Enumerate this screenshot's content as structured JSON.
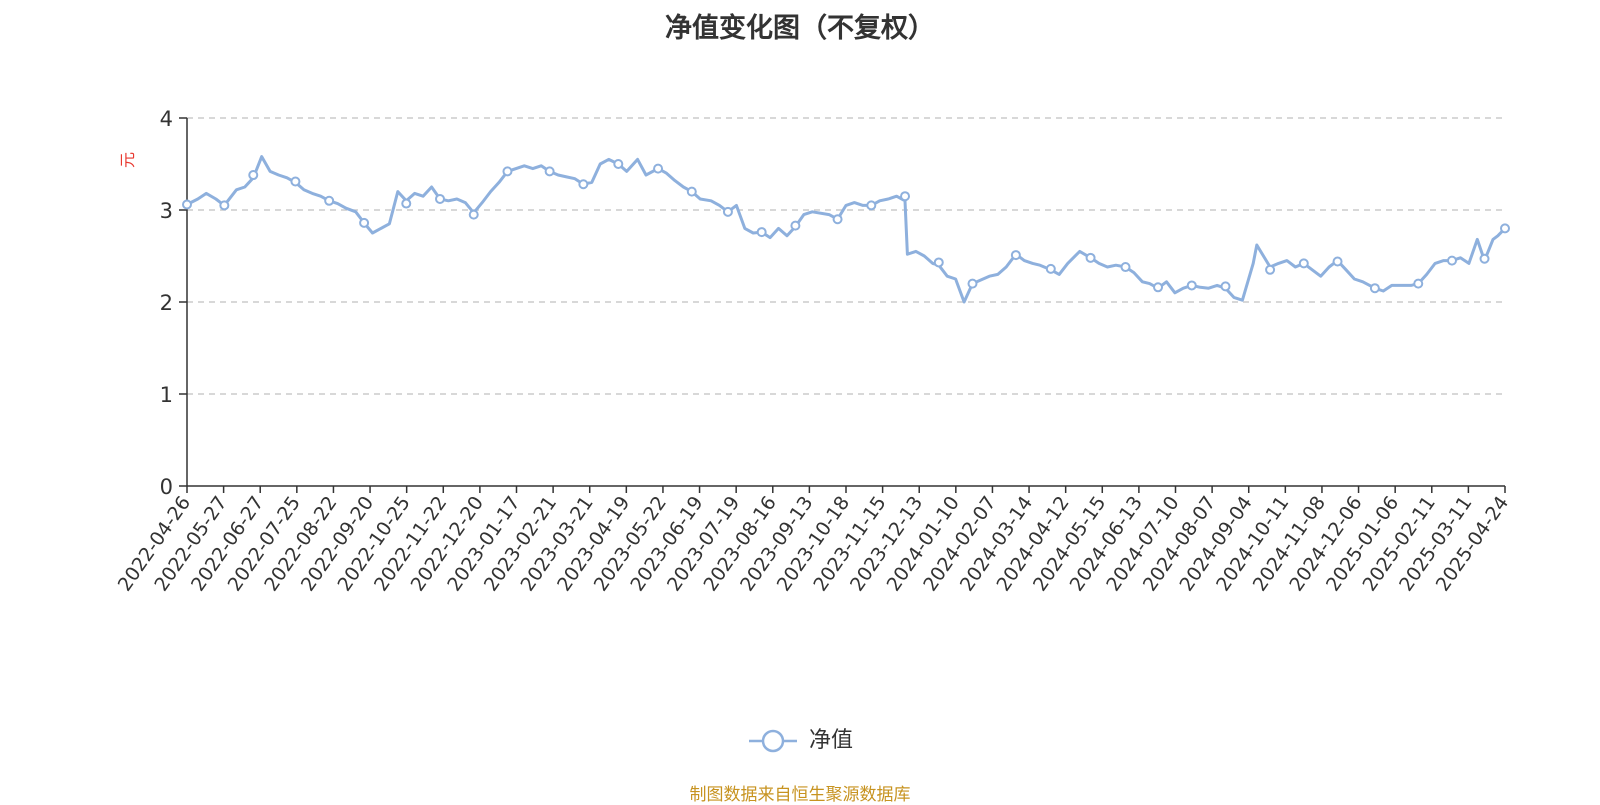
{
  "chart_data": {
    "type": "line",
    "title": "净值变化图（不复权）",
    "ylabel": "元",
    "ylim": [
      0,
      4
    ],
    "yticks": [
      0,
      1,
      2,
      3,
      4
    ],
    "grid": true,
    "legend_position": "bottom",
    "x_tick_labels": [
      "2022-04-26",
      "2022-05-27",
      "2022-06-27",
      "2022-07-25",
      "2022-08-22",
      "2022-09-20",
      "2022-10-25",
      "2022-11-22",
      "2022-12-20",
      "2023-01-17",
      "2023-02-21",
      "2023-03-21",
      "2023-04-19",
      "2023-05-22",
      "2023-06-19",
      "2023-07-19",
      "2023-08-16",
      "2023-09-13",
      "2023-10-18",
      "2023-11-15",
      "2023-12-13",
      "2024-01-10",
      "2024-02-07",
      "2024-03-14",
      "2024-04-12",
      "2024-05-15",
      "2024-06-13",
      "2024-07-10",
      "2024-08-07",
      "2024-09-04",
      "2024-10-11",
      "2024-11-08",
      "2024-12-06",
      "2025-01-06",
      "2025-02-11",
      "2025-03-11",
      "2025-04-24"
    ],
    "series": [
      {
        "name": "净值",
        "color": "#8eb0dd",
        "points": [
          [
            "2022-04-26",
            3.06
          ],
          [
            "2022-05-05",
            3.12
          ],
          [
            "2022-05-12",
            3.18
          ],
          [
            "2022-05-20",
            3.12
          ],
          [
            "2022-05-27",
            3.05
          ],
          [
            "2022-06-06",
            3.22
          ],
          [
            "2022-06-13",
            3.25
          ],
          [
            "2022-06-20",
            3.35
          ],
          [
            "2022-06-27",
            3.58
          ],
          [
            "2022-07-04",
            3.42
          ],
          [
            "2022-07-11",
            3.38
          ],
          [
            "2022-07-18",
            3.35
          ],
          [
            "2022-07-25",
            3.3
          ],
          [
            "2022-08-01",
            3.22
          ],
          [
            "2022-08-08",
            3.18
          ],
          [
            "2022-08-15",
            3.15
          ],
          [
            "2022-08-22",
            3.1
          ],
          [
            "2022-08-29",
            3.07
          ],
          [
            "2022-09-05",
            3.02
          ],
          [
            "2022-09-13",
            2.98
          ],
          [
            "2022-09-20",
            2.86
          ],
          [
            "2022-09-27",
            2.75
          ],
          [
            "2022-10-11",
            2.85
          ],
          [
            "2022-10-18",
            3.2
          ],
          [
            "2022-10-25",
            3.1
          ],
          [
            "2022-11-01",
            3.18
          ],
          [
            "2022-11-08",
            3.15
          ],
          [
            "2022-11-15",
            3.25
          ],
          [
            "2022-11-22",
            3.12
          ],
          [
            "2022-11-29",
            3.1
          ],
          [
            "2022-12-06",
            3.12
          ],
          [
            "2022-12-13",
            3.08
          ],
          [
            "2022-12-20",
            2.97
          ],
          [
            "2022-12-27",
            3.08
          ],
          [
            "2023-01-03",
            3.2
          ],
          [
            "2023-01-10",
            3.3
          ],
          [
            "2023-01-17",
            3.42
          ],
          [
            "2023-01-31",
            3.48
          ],
          [
            "2023-02-07",
            3.45
          ],
          [
            "2023-02-14",
            3.48
          ],
          [
            "2023-02-21",
            3.42
          ],
          [
            "2023-02-28",
            3.38
          ],
          [
            "2023-03-07",
            3.36
          ],
          [
            "2023-03-14",
            3.34
          ],
          [
            "2023-03-21",
            3.28
          ],
          [
            "2023-03-28",
            3.3
          ],
          [
            "2023-04-04",
            3.5
          ],
          [
            "2023-04-11",
            3.55
          ],
          [
            "2023-04-19",
            3.5
          ],
          [
            "2023-04-26",
            3.42
          ],
          [
            "2023-05-05",
            3.55
          ],
          [
            "2023-05-12",
            3.38
          ],
          [
            "2023-05-22",
            3.45
          ],
          [
            "2023-05-29",
            3.4
          ],
          [
            "2023-06-05",
            3.32
          ],
          [
            "2023-06-12",
            3.25
          ],
          [
            "2023-06-19",
            3.2
          ],
          [
            "2023-06-26",
            3.12
          ],
          [
            "2023-07-05",
            3.1
          ],
          [
            "2023-07-12",
            3.05
          ],
          [
            "2023-07-19",
            2.98
          ],
          [
            "2023-07-26",
            3.05
          ],
          [
            "2023-08-02",
            2.8
          ],
          [
            "2023-08-09",
            2.75
          ],
          [
            "2023-08-16",
            2.76
          ],
          [
            "2023-08-23",
            2.7
          ],
          [
            "2023-08-30",
            2.8
          ],
          [
            "2023-09-06",
            2.72
          ],
          [
            "2023-09-13",
            2.82
          ],
          [
            "2023-09-20",
            2.95
          ],
          [
            "2023-09-27",
            2.98
          ],
          [
            "2023-10-11",
            2.95
          ],
          [
            "2023-10-18",
            2.9
          ],
          [
            "2023-10-25",
            3.05
          ],
          [
            "2023-11-01",
            3.08
          ],
          [
            "2023-11-08",
            3.05
          ],
          [
            "2023-11-15",
            3.05
          ],
          [
            "2023-11-22",
            3.1
          ],
          [
            "2023-11-29",
            3.12
          ],
          [
            "2023-12-06",
            3.15
          ],
          [
            "2023-12-13",
            3.1
          ],
          [
            "2023-12-15",
            2.52
          ],
          [
            "2023-12-22",
            2.55
          ],
          [
            "2023-12-29",
            2.5
          ],
          [
            "2024-01-05",
            2.42
          ],
          [
            "2024-01-10",
            2.4
          ],
          [
            "2024-01-17",
            2.28
          ],
          [
            "2024-01-24",
            2.25
          ],
          [
            "2024-01-31",
            2.0
          ],
          [
            "2024-02-07",
            2.2
          ],
          [
            "2024-02-21",
            2.28
          ],
          [
            "2024-02-28",
            2.3
          ],
          [
            "2024-03-06",
            2.38
          ],
          [
            "2024-03-14",
            2.52
          ],
          [
            "2024-03-21",
            2.45
          ],
          [
            "2024-03-28",
            2.42
          ],
          [
            "2024-04-03",
            2.4
          ],
          [
            "2024-04-12",
            2.35
          ],
          [
            "2024-04-19",
            2.3
          ],
          [
            "2024-04-26",
            2.42
          ],
          [
            "2024-05-06",
            2.55
          ],
          [
            "2024-05-15",
            2.48
          ],
          [
            "2024-05-22",
            2.42
          ],
          [
            "2024-05-29",
            2.38
          ],
          [
            "2024-06-05",
            2.4
          ],
          [
            "2024-06-13",
            2.38
          ],
          [
            "2024-06-20",
            2.32
          ],
          [
            "2024-06-27",
            2.22
          ],
          [
            "2024-07-03",
            2.2
          ],
          [
            "2024-07-10",
            2.15
          ],
          [
            "2024-07-17",
            2.22
          ],
          [
            "2024-07-24",
            2.1
          ],
          [
            "2024-07-31",
            2.15
          ],
          [
            "2024-08-07",
            2.18
          ],
          [
            "2024-08-14",
            2.16
          ],
          [
            "2024-08-21",
            2.15
          ],
          [
            "2024-08-28",
            2.18
          ],
          [
            "2024-09-04",
            2.15
          ],
          [
            "2024-09-11",
            2.05
          ],
          [
            "2024-09-18",
            2.02
          ],
          [
            "2024-09-27",
            2.42
          ],
          [
            "2024-09-30",
            2.62
          ],
          [
            "2024-10-11",
            2.38
          ],
          [
            "2024-10-18",
            2.42
          ],
          [
            "2024-10-25",
            2.45
          ],
          [
            "2024-11-01",
            2.38
          ],
          [
            "2024-11-08",
            2.42
          ],
          [
            "2024-11-15",
            2.35
          ],
          [
            "2024-11-22",
            2.28
          ],
          [
            "2024-11-29",
            2.38
          ],
          [
            "2024-12-06",
            2.45
          ],
          [
            "2024-12-13",
            2.35
          ],
          [
            "2024-12-20",
            2.25
          ],
          [
            "2024-12-27",
            2.22
          ],
          [
            "2025-01-06",
            2.15
          ],
          [
            "2025-01-13",
            2.12
          ],
          [
            "2025-01-20",
            2.18
          ],
          [
            "2025-02-05",
            2.18
          ],
          [
            "2025-02-11",
            2.2
          ],
          [
            "2025-02-18",
            2.3
          ],
          [
            "2025-02-25",
            2.42
          ],
          [
            "2025-03-04",
            2.45
          ],
          [
            "2025-03-11",
            2.45
          ],
          [
            "2025-03-18",
            2.48
          ],
          [
            "2025-03-25",
            2.42
          ],
          [
            "2025-04-01",
            2.68
          ],
          [
            "2025-04-07",
            2.45
          ],
          [
            "2025-04-14",
            2.68
          ],
          [
            "2025-04-18",
            2.72
          ],
          [
            "2025-04-24",
            2.8
          ]
        ],
        "marker_points": [
          [
            "2022-04-26",
            3.06
          ],
          [
            "2022-05-27",
            3.05
          ],
          [
            "2022-06-20",
            3.38
          ],
          [
            "2022-07-25",
            3.31
          ],
          [
            "2022-08-22",
            3.1
          ],
          [
            "2022-09-20",
            2.86
          ],
          [
            "2022-10-25",
            3.07
          ],
          [
            "2022-11-22",
            3.12
          ],
          [
            "2022-12-20",
            2.95
          ],
          [
            "2023-01-17",
            3.42
          ],
          [
            "2023-02-21",
            3.42
          ],
          [
            "2023-03-21",
            3.28
          ],
          [
            "2023-04-19",
            3.5
          ],
          [
            "2023-05-22",
            3.45
          ],
          [
            "2023-06-19",
            3.2
          ],
          [
            "2023-07-19",
            2.98
          ],
          [
            "2023-08-16",
            2.76
          ],
          [
            "2023-09-13",
            2.83
          ],
          [
            "2023-10-18",
            2.9
          ],
          [
            "2023-11-15",
            3.05
          ],
          [
            "2023-12-13",
            3.15
          ],
          [
            "2024-01-10",
            2.43
          ],
          [
            "2024-02-07",
            2.2
          ],
          [
            "2024-03-14",
            2.51
          ],
          [
            "2024-04-12",
            2.36
          ],
          [
            "2024-05-15",
            2.48
          ],
          [
            "2024-06-13",
            2.38
          ],
          [
            "2024-07-10",
            2.16
          ],
          [
            "2024-08-07",
            2.18
          ],
          [
            "2024-09-04",
            2.17
          ],
          [
            "2024-10-11",
            2.35
          ],
          [
            "2024-11-08",
            2.42
          ],
          [
            "2024-12-06",
            2.44
          ],
          [
            "2025-01-06",
            2.15
          ],
          [
            "2025-02-11",
            2.2
          ],
          [
            "2025-03-11",
            2.45
          ],
          [
            "2025-04-07",
            2.47
          ],
          [
            "2025-04-24",
            2.8
          ]
        ]
      }
    ]
  },
  "legend": {
    "label": "净值"
  },
  "footer": {
    "source": "制图数据来自恒生聚源数据库"
  }
}
